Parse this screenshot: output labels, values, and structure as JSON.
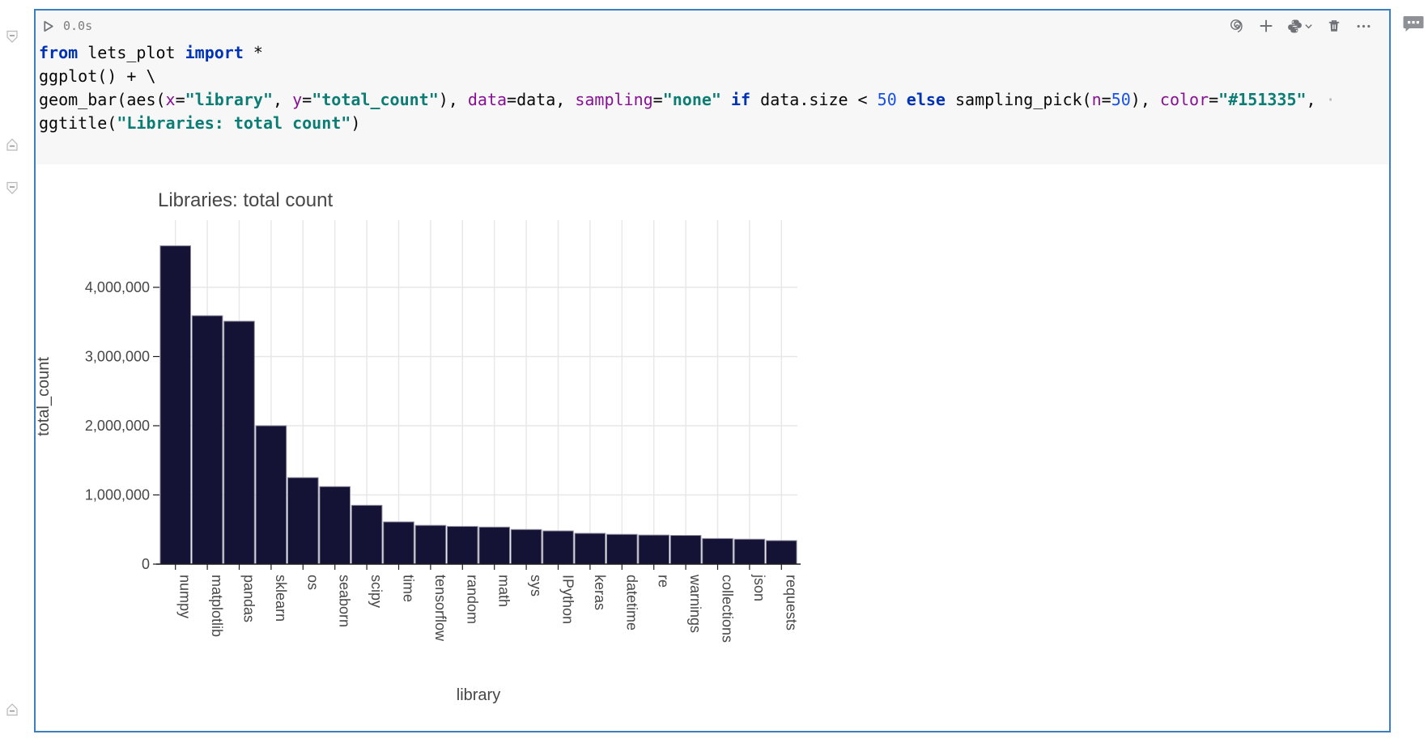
{
  "cell": {
    "header": {
      "execution_time": "0.0s"
    },
    "toolbar": {
      "icons": [
        "ai-spiral-icon",
        "add-cell-icon",
        "python-interpreter-icon",
        "chevron-down-icon",
        "delete-cell-icon",
        "more-options-icon"
      ]
    },
    "border_color": "#3d7ebd",
    "code_background": "#f7f7f7"
  },
  "code": {
    "lines": [
      [
        {
          "t": "from",
          "c": "kw"
        },
        {
          "t": " lets_plot ",
          "c": "pl"
        },
        {
          "t": "import",
          "c": "kw"
        },
        {
          "t": " *",
          "c": "pl"
        }
      ],
      [
        {
          "t": "ggplot() + \\",
          "c": "pl"
        }
      ],
      [
        {
          "t": "geom_bar(aes(",
          "c": "pl"
        },
        {
          "t": "x",
          "c": "pm"
        },
        {
          "t": "=",
          "c": "pl"
        },
        {
          "t": "\"library\"",
          "c": "st"
        },
        {
          "t": ", ",
          "c": "pl"
        },
        {
          "t": "y",
          "c": "pm"
        },
        {
          "t": "=",
          "c": "pl"
        },
        {
          "t": "\"total_count\"",
          "c": "st"
        },
        {
          "t": "), ",
          "c": "pl"
        },
        {
          "t": "data",
          "c": "pm"
        },
        {
          "t": "=data, ",
          "c": "pl"
        },
        {
          "t": "sampling",
          "c": "pm"
        },
        {
          "t": "=",
          "c": "pl"
        },
        {
          "t": "\"none\"",
          "c": "st"
        },
        {
          "t": " ",
          "c": "pl"
        },
        {
          "t": "if",
          "c": "kw"
        },
        {
          "t": " data.size < ",
          "c": "pl"
        },
        {
          "t": "50",
          "c": "nm"
        },
        {
          "t": " ",
          "c": "pl"
        },
        {
          "t": "else",
          "c": "kw"
        },
        {
          "t": " sampling_pick(",
          "c": "pl"
        },
        {
          "t": "n",
          "c": "pm"
        },
        {
          "t": "=",
          "c": "pl"
        },
        {
          "t": "50",
          "c": "nm"
        },
        {
          "t": "), ",
          "c": "pl"
        },
        {
          "t": "color",
          "c": "pm"
        },
        {
          "t": "=",
          "c": "pl"
        },
        {
          "t": "\"#151335\"",
          "c": "st"
        },
        {
          "t": ", ",
          "c": "pl"
        },
        {
          "t": "·",
          "c": "dim"
        }
      ],
      [
        {
          "t": "ggtitle(",
          "c": "pl"
        },
        {
          "t": "\"Libraries: total count\"",
          "c": "st"
        },
        {
          "t": ")",
          "c": "pl"
        }
      ]
    ]
  },
  "chart_data": {
    "type": "bar",
    "title": "Libraries: total count",
    "xlabel": "library",
    "ylabel": "total_count",
    "categories": [
      "numpy",
      "matplotlib",
      "pandas",
      "sklearn",
      "os",
      "seaborn",
      "scipy",
      "time",
      "tensorflow",
      "random",
      "math",
      "sys",
      "IPython",
      "keras",
      "datetime",
      "re",
      "warnings",
      "collections",
      "json",
      "requests"
    ],
    "values": [
      4600000,
      3590000,
      3510000,
      2000000,
      1250000,
      1120000,
      850000,
      610000,
      560000,
      545000,
      535000,
      500000,
      480000,
      445000,
      430000,
      420000,
      415000,
      370000,
      360000,
      340000
    ],
    "ylim": [
      0,
      4970000
    ],
    "yticks": [
      0,
      1000000,
      2000000,
      3000000,
      4000000
    ],
    "ytick_labels": [
      "0",
      "1,000,000",
      "2,000,000",
      "3,000,000",
      "4,000,000"
    ],
    "grid": true,
    "legend": "none",
    "x_tick_rotation": 90,
    "bar_fill": "#151335",
    "bar_stroke": "#8f8da0",
    "grid_color": "#e7e7e7",
    "axis_line_color": "#1c1c1c",
    "text_color": "#474747"
  }
}
